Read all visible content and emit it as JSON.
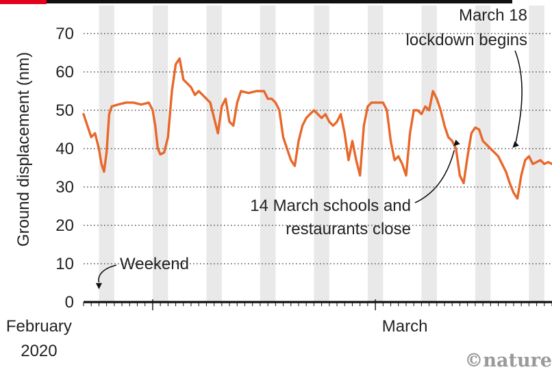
{
  "chart_data": {
    "type": "line",
    "ylabel": "Ground displacement (nm)",
    "ylim": [
      0,
      70
    ],
    "yticks": [
      "0",
      "10",
      "20",
      "30",
      "40",
      "50",
      "60",
      "70"
    ],
    "xlim": [
      "2020-01-23",
      "2020-03-24"
    ],
    "x_tick_labels": [
      {
        "label": "February",
        "label2": "2020",
        "date": "2020-02-01"
      },
      {
        "label": "March",
        "label2": "",
        "date": "2020-03-01"
      }
    ],
    "grid": "dotted horizontal",
    "series": [
      {
        "color": "#e8672a",
        "points": [
          [
            "2020-01-23T00:00",
            49
          ],
          [
            "2020-01-23T12:00",
            46
          ],
          [
            "2020-01-24T00:00",
            43
          ],
          [
            "2020-01-24T12:00",
            44
          ],
          [
            "2020-01-25T00:00",
            40
          ],
          [
            "2020-01-25T08:00",
            36
          ],
          [
            "2020-01-25T16:00",
            34
          ],
          [
            "2020-01-26T00:00",
            39
          ],
          [
            "2020-01-26T08:00",
            49
          ],
          [
            "2020-01-26T16:00",
            51
          ],
          [
            "2020-01-27T12:00",
            51.5
          ],
          [
            "2020-01-28T12:00",
            52
          ],
          [
            "2020-01-29T12:00",
            52
          ],
          [
            "2020-01-30T12:00",
            51.5
          ],
          [
            "2020-01-31T12:00",
            52
          ],
          [
            "2020-02-01T00:00",
            50
          ],
          [
            "2020-02-01T08:00",
            46
          ],
          [
            "2020-02-01T16:00",
            40
          ],
          [
            "2020-02-02T00:00",
            38.5
          ],
          [
            "2020-02-02T12:00",
            39
          ],
          [
            "2020-02-03T00:00",
            43
          ],
          [
            "2020-02-03T12:00",
            55
          ],
          [
            "2020-02-04T00:00",
            62
          ],
          [
            "2020-02-04T12:00",
            63.5
          ],
          [
            "2020-02-05T00:00",
            58
          ],
          [
            "2020-02-05T12:00",
            57
          ],
          [
            "2020-02-06T00:00",
            56
          ],
          [
            "2020-02-06T12:00",
            54
          ],
          [
            "2020-02-07T00:00",
            55
          ],
          [
            "2020-02-07T12:00",
            54
          ],
          [
            "2020-02-08T00:00",
            53
          ],
          [
            "2020-02-08T12:00",
            52
          ],
          [
            "2020-02-09T00:00",
            48
          ],
          [
            "2020-02-09T12:00",
            44
          ],
          [
            "2020-02-10T00:00",
            51
          ],
          [
            "2020-02-10T12:00",
            53
          ],
          [
            "2020-02-11T00:00",
            47
          ],
          [
            "2020-02-11T12:00",
            46
          ],
          [
            "2020-02-12T00:00",
            52
          ],
          [
            "2020-02-12T12:00",
            55
          ],
          [
            "2020-02-13T12:00",
            54.5
          ],
          [
            "2020-02-14T12:00",
            55
          ],
          [
            "2020-02-15T12:00",
            55
          ],
          [
            "2020-02-16T00:00",
            53
          ],
          [
            "2020-02-16T12:00",
            53
          ],
          [
            "2020-02-17T00:00",
            52
          ],
          [
            "2020-02-17T12:00",
            50
          ],
          [
            "2020-02-18T00:00",
            43
          ],
          [
            "2020-02-18T12:00",
            40
          ],
          [
            "2020-02-19T00:00",
            37
          ],
          [
            "2020-02-19T12:00",
            35.5
          ],
          [
            "2020-02-20T00:00",
            42
          ],
          [
            "2020-02-20T12:00",
            46
          ],
          [
            "2020-02-21T00:00",
            48
          ],
          [
            "2020-02-21T12:00",
            49
          ],
          [
            "2020-02-22T00:00",
            50
          ],
          [
            "2020-02-22T12:00",
            49
          ],
          [
            "2020-02-23T00:00",
            48
          ],
          [
            "2020-02-23T12:00",
            49
          ],
          [
            "2020-02-24T00:00",
            47
          ],
          [
            "2020-02-24T12:00",
            46
          ],
          [
            "2020-02-25T00:00",
            47
          ],
          [
            "2020-02-25T12:00",
            49
          ],
          [
            "2020-02-26T00:00",
            44
          ],
          [
            "2020-02-26T12:00",
            37
          ],
          [
            "2020-02-27T00:00",
            42
          ],
          [
            "2020-02-27T12:00",
            37
          ],
          [
            "2020-02-28T00:00",
            33
          ],
          [
            "2020-02-28T12:00",
            46
          ],
          [
            "2020-02-29T00:00",
            51
          ],
          [
            "2020-02-29T12:00",
            52
          ],
          [
            "2020-03-01T00:00",
            52
          ],
          [
            "2020-03-01T12:00",
            52
          ],
          [
            "2020-03-02T00:00",
            52
          ],
          [
            "2020-03-02T12:00",
            50
          ],
          [
            "2020-03-03T00:00",
            42
          ],
          [
            "2020-03-03T12:00",
            37
          ],
          [
            "2020-03-04T00:00",
            38
          ],
          [
            "2020-03-04T12:00",
            36
          ],
          [
            "2020-03-05T00:00",
            33
          ],
          [
            "2020-03-05T12:00",
            44
          ],
          [
            "2020-03-06T00:00",
            50
          ],
          [
            "2020-03-06T12:00",
            50
          ],
          [
            "2020-03-07T00:00",
            49
          ],
          [
            "2020-03-07T12:00",
            51
          ],
          [
            "2020-03-08T00:00",
            50
          ],
          [
            "2020-03-08T12:00",
            55
          ],
          [
            "2020-03-09T00:00",
            53
          ],
          [
            "2020-03-09T12:00",
            50
          ],
          [
            "2020-03-10T00:00",
            46
          ],
          [
            "2020-03-10T12:00",
            43
          ],
          [
            "2020-03-11T00:00",
            42
          ],
          [
            "2020-03-11T12:00",
            40
          ],
          [
            "2020-03-12T00:00",
            33
          ],
          [
            "2020-03-12T12:00",
            31
          ],
          [
            "2020-03-13T00:00",
            38
          ],
          [
            "2020-03-13T12:00",
            44
          ],
          [
            "2020-03-14T00:00",
            45.5
          ],
          [
            "2020-03-14T12:00",
            45
          ],
          [
            "2020-03-15T00:00",
            42
          ],
          [
            "2020-03-15T12:00",
            41
          ],
          [
            "2020-03-16T00:00",
            40
          ],
          [
            "2020-03-16T12:00",
            39
          ],
          [
            "2020-03-17T00:00",
            38
          ],
          [
            "2020-03-17T12:00",
            36
          ],
          [
            "2020-03-18T00:00",
            34
          ],
          [
            "2020-03-18T12:00",
            31
          ],
          [
            "2020-03-19T00:00",
            28.5
          ],
          [
            "2020-03-19T12:00",
            27
          ],
          [
            "2020-03-20T00:00",
            33
          ],
          [
            "2020-03-20T12:00",
            37
          ],
          [
            "2020-03-21T00:00",
            38
          ],
          [
            "2020-03-21T12:00",
            36
          ],
          [
            "2020-03-22T00:00",
            36.5
          ],
          [
            "2020-03-22T12:00",
            37
          ],
          [
            "2020-03-23T00:00",
            36
          ],
          [
            "2020-03-23T12:00",
            36.5
          ],
          [
            "2020-03-24T00:00",
            36
          ]
        ]
      }
    ],
    "weekend_bands": [
      [
        "2020-01-25",
        "2020-01-27"
      ],
      [
        "2020-02-01",
        "2020-02-03"
      ],
      [
        "2020-02-08",
        "2020-02-10"
      ],
      [
        "2020-02-15",
        "2020-02-17"
      ],
      [
        "2020-02-22",
        "2020-02-24"
      ],
      [
        "2020-02-29",
        "2020-03-02"
      ],
      [
        "2020-03-07",
        "2020-03-09"
      ],
      [
        "2020-03-14",
        "2020-03-16"
      ],
      [
        "2020-03-21",
        "2020-03-23"
      ]
    ],
    "annotations": [
      {
        "lines": [
          "March 18",
          "lockdown begins"
        ],
        "date": "2020-03-18T12:00",
        "y": 39.5
      },
      {
        "lines": [
          "14 March schools and",
          "restaurants close"
        ],
        "date": "2020-03-11T00:00",
        "y": 41
      },
      {
        "lines": [
          "Weekend"
        ],
        "date": "2020-01-25T00:00",
        "y": 3
      }
    ]
  },
  "credit": "©nature",
  "colors": {
    "accent_bar": "#e3001b",
    "top_rule": "#111111",
    "line": "#e8672a",
    "weekend_band": "#e9e9e9",
    "grid": "#555555",
    "axis": "#111111"
  }
}
